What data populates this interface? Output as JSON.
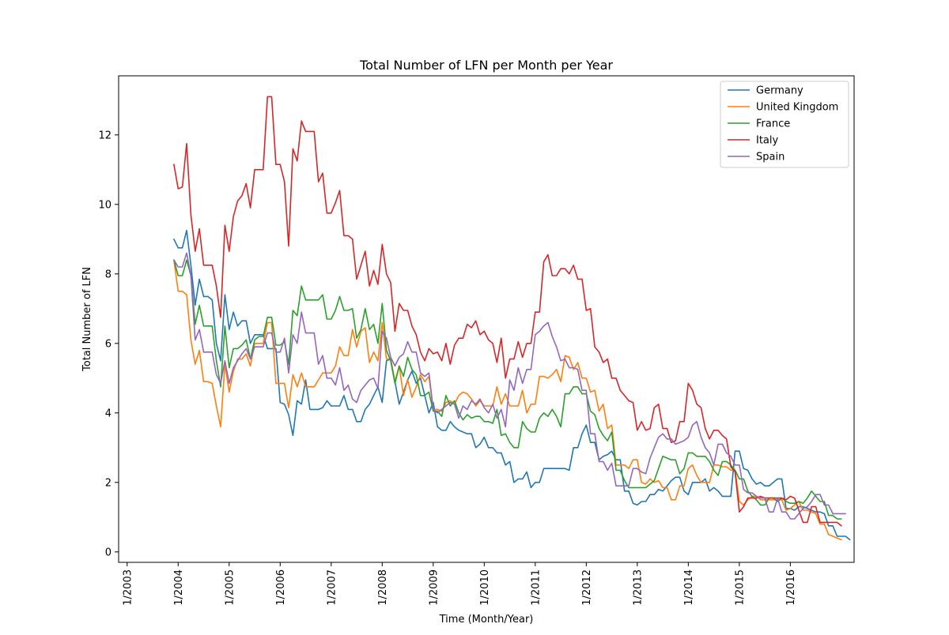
{
  "chart_data": {
    "type": "line",
    "title": "Total Number of LFN per Month per Year",
    "xlabel": "Time (Month/Year)",
    "ylabel": "Total Number of LFN",
    "x_ticks": [
      "1/2003",
      "1/2004",
      "1/2005",
      "1/2006",
      "1/2007",
      "1/2008",
      "1/2009",
      "1/2010",
      "1/2011",
      "1/2012",
      "1/2013",
      "1/2014",
      "1/2015",
      "1/2016"
    ],
    "y_ticks": [
      "0",
      "2",
      "4",
      "6",
      "8",
      "10",
      "12"
    ],
    "xlim": [
      "2002-11",
      "2017-04"
    ],
    "ylim": [
      -0.3,
      13.7
    ],
    "grid": false,
    "legend_position": "top-right",
    "x_start": "2003-12",
    "x_end": "2016-12",
    "x_step": "1 month",
    "series": [
      {
        "name": "Germany",
        "color": "#1f77b4",
        "values": [
          9.0,
          8.75,
          8.75,
          9.25,
          8.25,
          7.1,
          7.85,
          7.35,
          7.35,
          7.25,
          6.0,
          5.5,
          7.4,
          6.4,
          6.9,
          6.5,
          6.65,
          6.65,
          6.0,
          6.25,
          6.25,
          6.25,
          5.85,
          5.85,
          5.85,
          4.3,
          4.25,
          3.95,
          3.35,
          4.35,
          4.25,
          4.95,
          4.1,
          4.1,
          4.1,
          4.15,
          4.35,
          4.2,
          4.2,
          4.2,
          4.5,
          4.1,
          4.1,
          3.75,
          3.75,
          4.1,
          4.25,
          4.5,
          4.75,
          4.3,
          5.5,
          5.55,
          4.9,
          4.25,
          4.6,
          4.95,
          5.2,
          4.85,
          5.0,
          4.5,
          4.0,
          4.3,
          3.6,
          3.5,
          3.5,
          3.75,
          3.6,
          3.5,
          3.45,
          3.4,
          3.4,
          3.0,
          3.1,
          3.3,
          3.0,
          3.0,
          2.85,
          2.85,
          2.5,
          2.6,
          2.0,
          2.1,
          2.1,
          2.3,
          1.85,
          2.0,
          2.0,
          2.4,
          2.4,
          2.4,
          2.4,
          2.4,
          2.4,
          2.35,
          3.0,
          3.0,
          3.4,
          3.65,
          3.15,
          3.15,
          2.65,
          2.75,
          2.8,
          2.9,
          2.65,
          2.65,
          1.75,
          1.75,
          1.4,
          1.35,
          1.45,
          1.45,
          1.65,
          1.65,
          1.8,
          1.75,
          1.9,
          2.05,
          2.15,
          2.15,
          1.75,
          1.65,
          2.0,
          2.0,
          2.0,
          2.1,
          1.75,
          1.85,
          1.75,
          1.6,
          1.6,
          1.6,
          2.9,
          2.9,
          2.4,
          2.35,
          2.1,
          1.95,
          2.0,
          1.9,
          1.9,
          2.0,
          2.1,
          2.1,
          1.25,
          1.25,
          1.2,
          1.3,
          1.3,
          1.25,
          1.2,
          1.15,
          1.15,
          1.1,
          0.75,
          0.75,
          0.45,
          0.45,
          0.45,
          0.35
        ]
      },
      {
        "name": "United Kingdom",
        "color": "#ff7f0e",
        "values": [
          8.4,
          7.5,
          7.5,
          7.4,
          6.1,
          5.4,
          5.8,
          4.9,
          4.9,
          4.85,
          4.2,
          3.6,
          5.4,
          4.6,
          5.2,
          5.55,
          5.55,
          5.7,
          5.35,
          6.0,
          6.0,
          6.0,
          6.6,
          6.6,
          4.85,
          4.85,
          4.85,
          4.15,
          5.1,
          4.75,
          5.15,
          4.75,
          4.75,
          4.75,
          4.95,
          5.15,
          5.15,
          5.15,
          5.35,
          5.9,
          5.65,
          5.65,
          6.4,
          5.9,
          6.35,
          6.45,
          5.45,
          5.75,
          5.5,
          6.6,
          5.55,
          5.55,
          4.9,
          5.35,
          4.5,
          4.95,
          4.45,
          4.75,
          5.1,
          4.9,
          5.05,
          4.1,
          4.1,
          4.05,
          4.3,
          4.35,
          4.25,
          4.5,
          4.6,
          4.55,
          4.4,
          4.2,
          4.35,
          4.2,
          4.2,
          4.2,
          4.75,
          4.25,
          4.55,
          4.2,
          4.2,
          4.2,
          4.65,
          4.0,
          4.25,
          4.25,
          5.05,
          5.05,
          5.0,
          5.1,
          5.25,
          4.9,
          5.65,
          5.6,
          5.25,
          5.45,
          5.0,
          5.0,
          4.6,
          4.65,
          4.05,
          4.25,
          3.55,
          3.65,
          2.5,
          2.5,
          2.5,
          2.4,
          2.65,
          2.65,
          2.0,
          1.95,
          2.1,
          2.0,
          2.05,
          1.85,
          1.85,
          1.5,
          1.5,
          1.9,
          1.9,
          2.4,
          2.5,
          2.2,
          2.0,
          2.0,
          2.0,
          2.5,
          2.5,
          2.45,
          2.45,
          2.35,
          2.35,
          1.45,
          1.35,
          1.5,
          1.6,
          1.6,
          1.5,
          1.5,
          1.5,
          1.5,
          1.5,
          1.5,
          1.2,
          1.25,
          1.35,
          1.45,
          1.2,
          1.2,
          1.15,
          1.1,
          0.8,
          0.8,
          0.5,
          0.45,
          0.4,
          0.35
        ]
      },
      {
        "name": "France",
        "color": "#2ca02c",
        "values": [
          8.4,
          7.95,
          7.95,
          8.4,
          7.95,
          6.55,
          7.1,
          6.5,
          6.5,
          6.5,
          5.5,
          4.75,
          6.5,
          5.3,
          5.85,
          5.85,
          5.95,
          6.1,
          5.55,
          6.1,
          6.2,
          6.2,
          6.75,
          6.75,
          5.95,
          5.95,
          6.05,
          5.4,
          6.95,
          6.8,
          7.65,
          7.25,
          7.25,
          7.25,
          7.25,
          7.4,
          6.7,
          6.7,
          6.95,
          7.35,
          6.95,
          6.95,
          7.0,
          6.15,
          6.4,
          7.0,
          6.4,
          6.55,
          6.0,
          7.15,
          5.8,
          5.5,
          4.85,
          5.35,
          5.05,
          5.6,
          5.25,
          5.1,
          4.5,
          4.5,
          4.6,
          4.05,
          4.05,
          3.9,
          4.5,
          4.2,
          4.35,
          4.0,
          3.8,
          3.95,
          3.85,
          3.9,
          3.9,
          3.75,
          3.75,
          3.7,
          4.1,
          3.35,
          3.4,
          3.15,
          3.0,
          3.0,
          3.75,
          3.55,
          3.45,
          3.45,
          3.85,
          4.0,
          3.9,
          4.1,
          3.9,
          3.6,
          4.55,
          4.55,
          4.75,
          4.75,
          4.55,
          4.55,
          4.05,
          3.95,
          3.55,
          3.35,
          3.2,
          3.45,
          2.35,
          2.35,
          2.05,
          1.85,
          1.85,
          1.85,
          1.85,
          1.85,
          1.95,
          2.05,
          2.4,
          2.75,
          2.7,
          2.65,
          2.65,
          2.25,
          2.4,
          2.85,
          2.85,
          2.75,
          2.75,
          2.75,
          2.6,
          2.35,
          2.2,
          2.6,
          2.6,
          2.5,
          2.35,
          2.1,
          2.1,
          1.75,
          1.6,
          1.5,
          1.35,
          1.35,
          1.55,
          1.55,
          1.45,
          1.55,
          1.45,
          1.4,
          1.4,
          1.45,
          1.4,
          1.55,
          1.75,
          1.6,
          1.45,
          1.45,
          1.05,
          1.05,
          0.95,
          0.95
        ]
      },
      {
        "name": "Italy",
        "color": "#d62728",
        "values": [
          11.15,
          10.45,
          10.5,
          11.75,
          9.7,
          8.65,
          9.3,
          8.25,
          8.25,
          8.25,
          7.65,
          6.75,
          9.4,
          8.65,
          9.65,
          10.1,
          10.25,
          10.6,
          9.9,
          11.0,
          11.0,
          11.0,
          13.1,
          13.1,
          11.15,
          11.15,
          10.65,
          8.8,
          11.6,
          11.25,
          12.4,
          12.1,
          12.1,
          12.1,
          10.65,
          10.9,
          9.75,
          9.75,
          10.05,
          10.4,
          9.1,
          9.1,
          9.0,
          7.85,
          8.25,
          8.65,
          7.65,
          8.1,
          7.7,
          8.85,
          8.0,
          7.75,
          6.35,
          7.15,
          6.95,
          6.95,
          6.5,
          6.25,
          5.75,
          5.5,
          5.85,
          5.7,
          5.75,
          5.5,
          6.0,
          5.4,
          5.95,
          6.15,
          6.15,
          6.55,
          6.45,
          6.65,
          6.25,
          6.35,
          6.1,
          6.0,
          5.45,
          6.15,
          5.0,
          5.55,
          5.55,
          6.05,
          5.6,
          6.0,
          6.0,
          6.9,
          6.9,
          8.35,
          8.55,
          7.95,
          7.95,
          8.15,
          8.15,
          8.0,
          8.25,
          7.85,
          7.85,
          6.95,
          7.0,
          5.9,
          5.75,
          5.45,
          5.55,
          5.0,
          5.0,
          4.65,
          4.5,
          4.35,
          4.3,
          3.5,
          3.75,
          3.5,
          3.55,
          4.15,
          4.25,
          3.55,
          3.55,
          3.15,
          3.2,
          3.75,
          3.75,
          4.85,
          4.65,
          4.25,
          4.15,
          3.55,
          3.25,
          3.5,
          3.5,
          3.35,
          3.25,
          2.45,
          2.3,
          1.15,
          1.3,
          1.55,
          1.55,
          1.55,
          1.6,
          1.55,
          1.55,
          1.55,
          1.55,
          1.55,
          1.5,
          1.6,
          1.55,
          1.2,
          0.85,
          0.85,
          1.3,
          1.3,
          0.85,
          0.85,
          0.85,
          0.85,
          0.85,
          0.75
        ]
      },
      {
        "name": "Spain",
        "color": "#9467bd",
        "values": [
          8.4,
          8.2,
          8.2,
          8.6,
          7.95,
          6.1,
          6.4,
          5.75,
          5.75,
          5.75,
          5.1,
          4.85,
          5.5,
          4.85,
          5.3,
          5.5,
          5.7,
          5.85,
          5.55,
          5.9,
          5.9,
          5.9,
          6.3,
          6.3,
          5.75,
          5.75,
          6.15,
          5.15,
          6.25,
          6.0,
          6.9,
          6.3,
          6.3,
          6.3,
          5.4,
          5.65,
          5.0,
          5.0,
          4.8,
          5.3,
          4.65,
          4.8,
          4.4,
          4.3,
          4.65,
          4.8,
          4.95,
          5.0,
          4.7,
          6.35,
          6.15,
          5.6,
          5.35,
          5.6,
          5.7,
          6.05,
          5.75,
          5.75,
          5.15,
          5.05,
          5.15,
          4.1,
          4.0,
          4.1,
          4.2,
          4.3,
          4.25,
          3.85,
          4.2,
          4.1,
          4.35,
          4.25,
          4.4,
          4.15,
          4.0,
          4.25,
          3.85,
          4.1,
          3.6,
          4.95,
          4.65,
          5.3,
          4.85,
          5.25,
          5.25,
          6.25,
          6.35,
          6.5,
          6.6,
          6.2,
          5.9,
          5.5,
          5.55,
          5.3,
          5.3,
          5.25,
          4.65,
          4.65,
          3.4,
          3.4,
          2.6,
          2.6,
          2.35,
          2.55,
          1.9,
          1.9,
          1.9,
          1.9,
          2.4,
          2.4,
          2.3,
          2.25,
          2.7,
          3.0,
          3.3,
          3.4,
          3.25,
          3.25,
          3.1,
          3.15,
          3.2,
          3.3,
          3.65,
          3.75,
          3.3,
          3.0,
          2.85,
          2.5,
          3.1,
          3.1,
          2.85,
          2.75,
          2.5,
          2.5,
          1.8,
          1.7,
          1.7,
          1.6,
          1.55,
          1.55,
          1.15,
          1.15,
          1.55,
          1.15,
          1.15,
          0.95,
          0.95,
          1.1,
          1.25,
          1.3,
          1.45,
          1.65,
          1.65,
          1.35,
          1.35,
          1.1,
          1.1,
          1.1,
          1.1
        ]
      }
    ]
  }
}
